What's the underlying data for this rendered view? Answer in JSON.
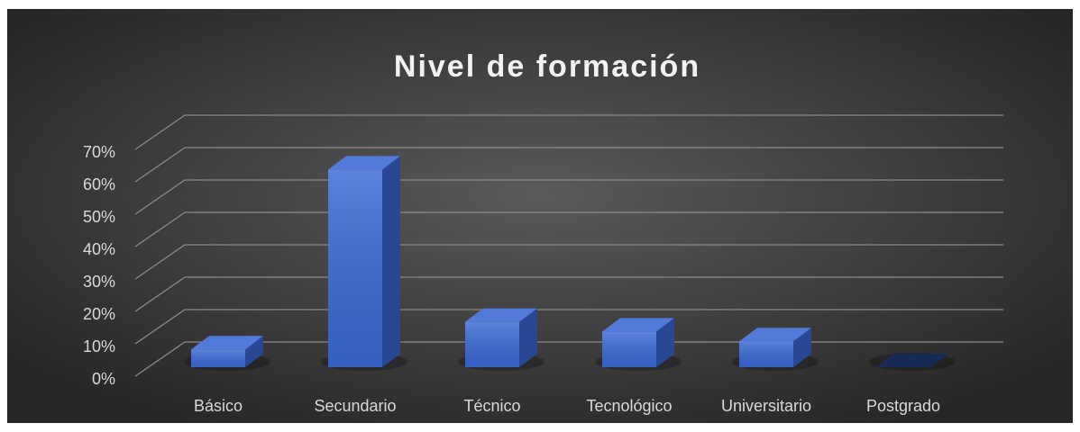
{
  "chart_data": {
    "type": "bar3d",
    "title": "Nivel de formación",
    "categories": [
      "Básico",
      "Secundario",
      "Técnico",
      "Tecnológico",
      "Universitario",
      "Postgrado"
    ],
    "values": [
      5.5,
      61,
      14,
      11,
      8,
      0
    ],
    "color": "#3b68d4",
    "ylim": [
      0,
      70
    ],
    "yticks": [
      {
        "value": 0,
        "label": "0%"
      },
      {
        "value": 10,
        "label": "10%"
      },
      {
        "value": 20,
        "label": "20%"
      },
      {
        "value": 30,
        "label": "30%"
      },
      {
        "value": 40,
        "label": "40%"
      },
      {
        "value": 50,
        "label": "50%"
      },
      {
        "value": 60,
        "label": "60%"
      },
      {
        "value": 70,
        "label": "70%"
      }
    ],
    "grid": true
  }
}
